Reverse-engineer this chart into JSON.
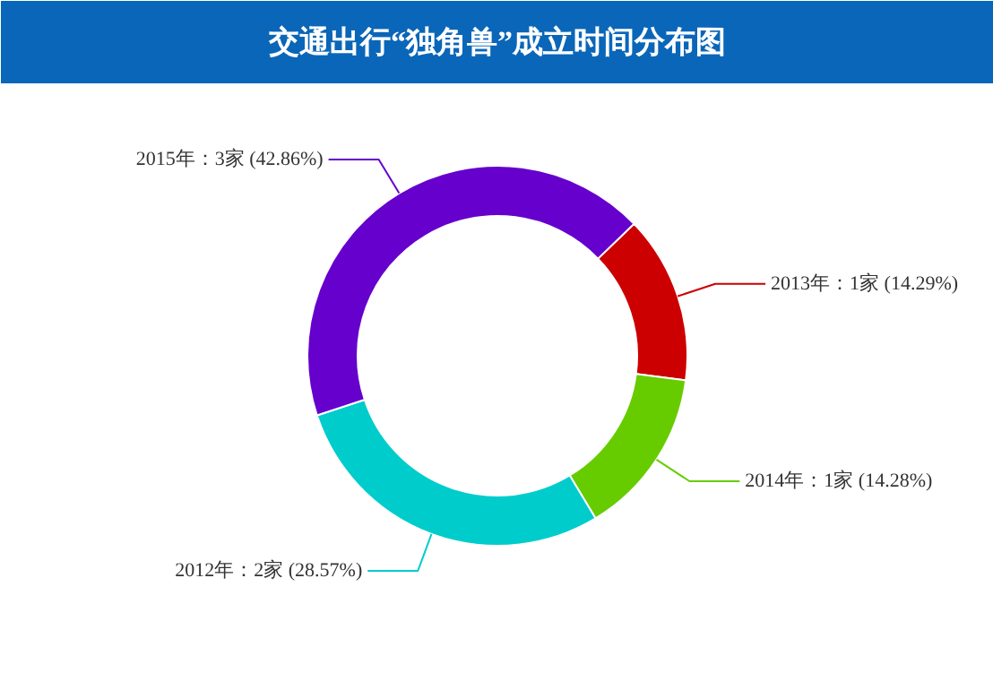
{
  "chart_data": {
    "type": "donut",
    "title": "交通出行“独角兽”成立时间分布图",
    "categories": [
      "2013年",
      "2014年",
      "2012年",
      "2015年"
    ],
    "values": [
      1,
      1,
      2,
      3
    ],
    "value_labels": [
      "1家 (14.29%)",
      "1家 (14.28%)",
      "2家 (28.57%)",
      "3家 (42.86%)"
    ],
    "colors": [
      "#cc0000",
      "#66cc00",
      "#00cccc",
      "#6600cc"
    ],
    "legend": false
  }
}
